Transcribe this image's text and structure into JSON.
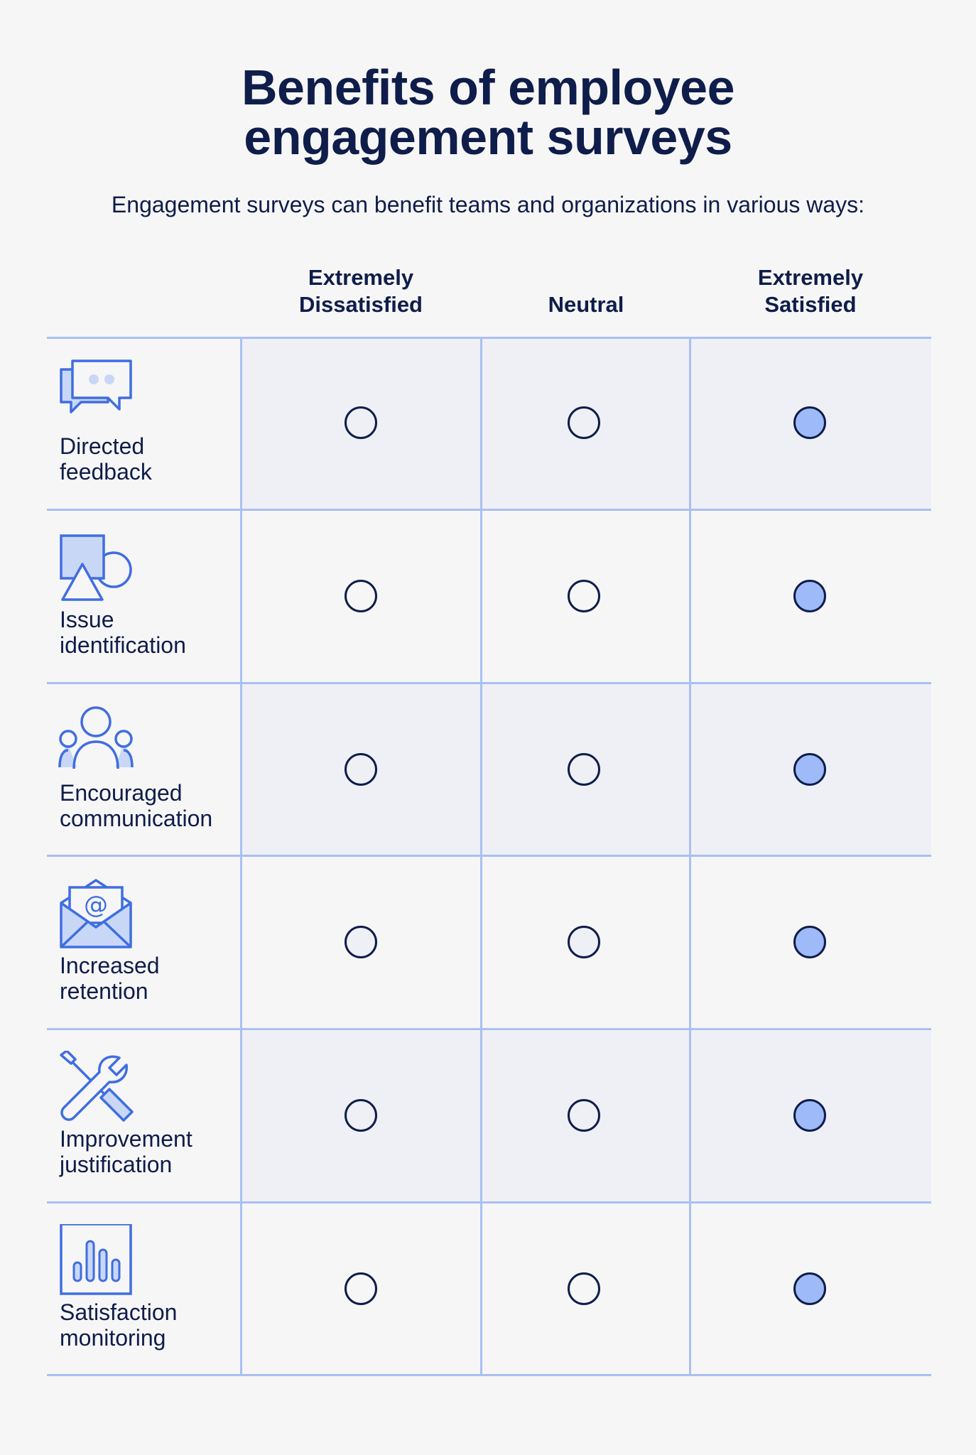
{
  "header": {
    "title_line1": "Benefits of employee",
    "title_line2": "engagement surveys",
    "subtitle": "Engagement surveys can benefit teams and organizations in various ways:"
  },
  "columns": [
    {
      "line1": "Extremely",
      "line2": "Dissatisfied"
    },
    {
      "line1": "",
      "line2": "Neutral"
    },
    {
      "line1": "Extremely",
      "line2": "Satisfied"
    }
  ],
  "rows": [
    {
      "label_line1": "Directed",
      "label_line2": "feedback",
      "icon": "chat-bubbles-icon",
      "selected": "Extremely Satisfied"
    },
    {
      "label_line1": "Issue",
      "label_line2": "identification",
      "icon": "shapes-icon",
      "selected": "Extremely Satisfied"
    },
    {
      "label_line1": "Encouraged",
      "label_line2": "communication",
      "icon": "people-group-icon",
      "selected": "Extremely Satisfied"
    },
    {
      "label_line1": "Increased",
      "label_line2": "retention",
      "icon": "email-envelope-icon",
      "selected": "Extremely Satisfied"
    },
    {
      "label_line1": "Improvement",
      "label_line2": "justification",
      "icon": "tools-icon",
      "selected": "Extremely Satisfied"
    },
    {
      "label_line1": "Satisfaction",
      "label_line2": "monitoring",
      "icon": "bar-chart-icon",
      "selected": "Extremely Satisfied"
    }
  ],
  "colors": {
    "text": "#0e1d4a",
    "icon_blue": "#3f6ee0",
    "icon_fill": "#c9d7f7",
    "grid_line": "#a8c0f3",
    "shaded_row": "#eff0f5",
    "selected_radio": "#9fbaf8",
    "background": "#f7f6f6"
  }
}
